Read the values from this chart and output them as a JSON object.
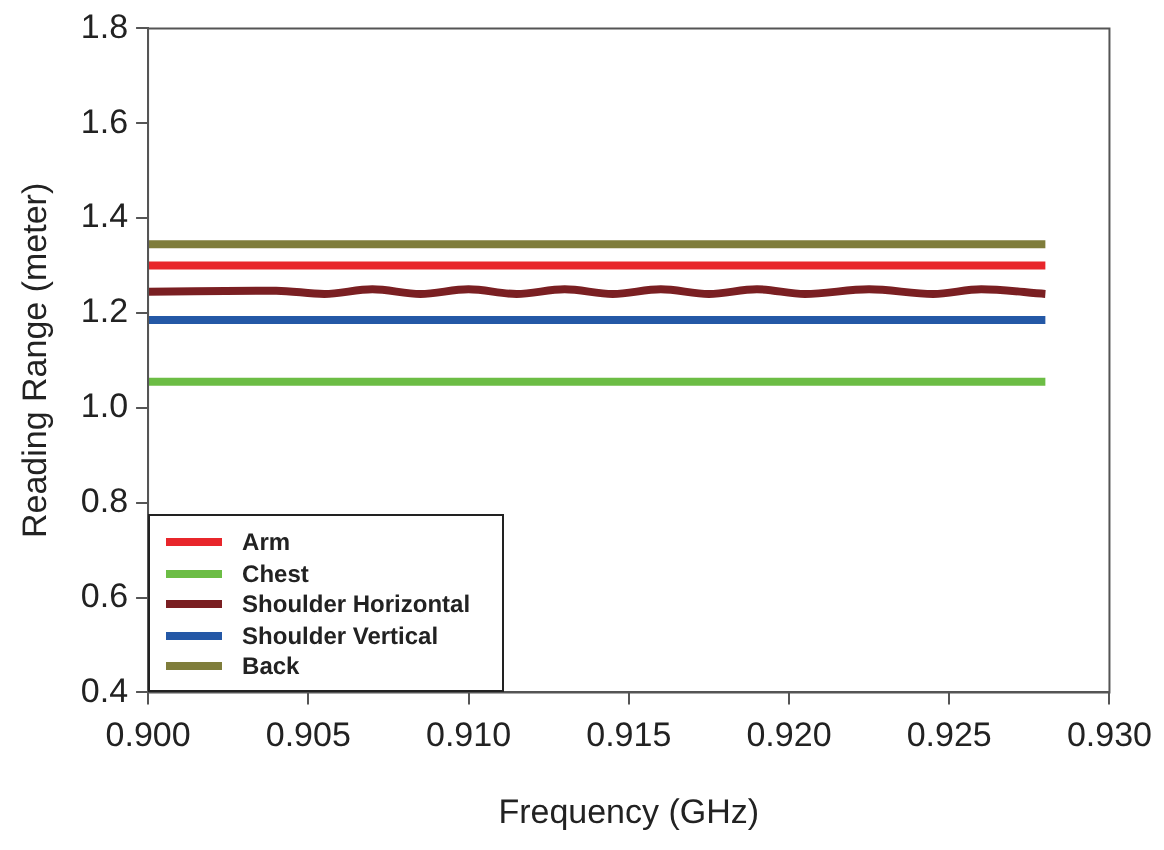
{
  "chart_data": {
    "type": "line",
    "xlabel": "Frequency (GHz)",
    "ylabel": "Reading Range (meter)",
    "x": [
      0.9,
      0.928
    ],
    "xlim": [
      0.9,
      0.93
    ],
    "xticks": [
      {
        "value": 0.9,
        "label": "0.900"
      },
      {
        "value": 0.905,
        "label": "0.905"
      },
      {
        "value": 0.91,
        "label": "0.910"
      },
      {
        "value": 0.915,
        "label": "0.915"
      },
      {
        "value": 0.92,
        "label": "0.920"
      },
      {
        "value": 0.925,
        "label": "0.925"
      },
      {
        "value": 0.93,
        "label": "0.930"
      }
    ],
    "ylim": [
      0.4,
      1.8
    ],
    "yticks": [
      {
        "value": 0.4,
        "label": "0.4"
      },
      {
        "value": 0.6,
        "label": "0.6"
      },
      {
        "value": 0.8,
        "label": "0.8"
      },
      {
        "value": 1.0,
        "label": "1.0"
      },
      {
        "value": 1.2,
        "label": "1.2"
      },
      {
        "value": 1.4,
        "label": "1.4"
      },
      {
        "value": 1.6,
        "label": "1.6"
      },
      {
        "value": 1.8,
        "label": "1.8"
      }
    ],
    "series": [
      {
        "name": "Arm",
        "color": "#e8262b",
        "values": [
          1.3,
          1.3
        ]
      },
      {
        "name": "Chest",
        "color": "#6cbd45",
        "values": [
          1.055,
          1.055
        ]
      },
      {
        "name": "Shoulder Horizontal",
        "color": "#7a1f22",
        "x": [
          0.9,
          0.904,
          0.9055,
          0.907,
          0.9085,
          0.91,
          0.9115,
          0.913,
          0.9145,
          0.916,
          0.9175,
          0.919,
          0.9205,
          0.9225,
          0.9245,
          0.926,
          0.928
        ],
        "values": [
          1.245,
          1.247,
          1.24,
          1.25,
          1.24,
          1.25,
          1.24,
          1.25,
          1.24,
          1.25,
          1.24,
          1.25,
          1.24,
          1.25,
          1.24,
          1.25,
          1.24
        ]
      },
      {
        "name": "Shoulder Vertical",
        "color": "#2458a6",
        "values": [
          1.185,
          1.185
        ]
      },
      {
        "name": "Back",
        "color": "#7f7d3b",
        "values": [
          1.345,
          1.345
        ]
      }
    ],
    "legend": "bottom left",
    "grid": false,
    "marker": "none",
    "line_style": "solid"
  }
}
